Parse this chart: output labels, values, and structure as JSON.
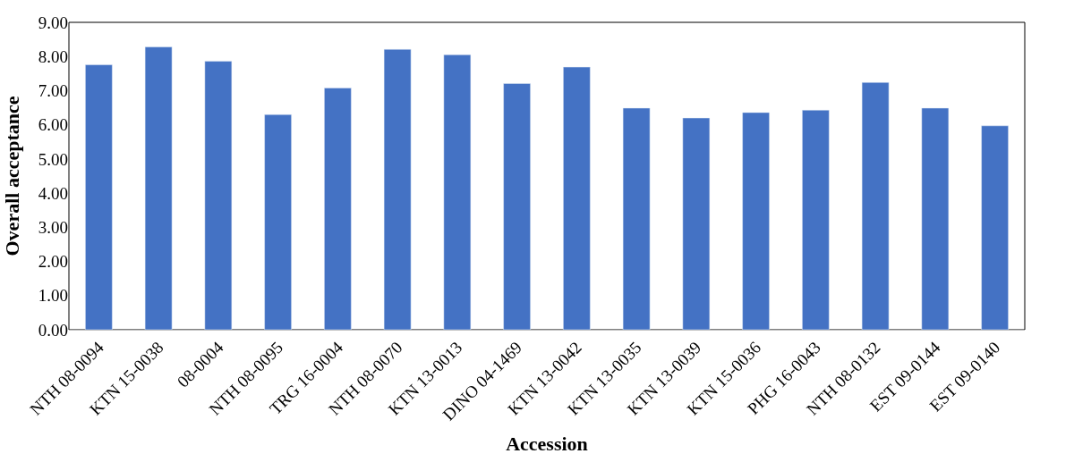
{
  "chart_data": {
    "type": "bar",
    "xlabel": "Accession",
    "ylabel": "Overall acceptance",
    "categories": [
      "NTH 08-0094",
      "KTN 15-0038",
      "08-0004",
      "NTH 08-0095",
      "TRG 16-0004",
      "NTH 08-0070",
      "KTN 13-0013",
      "DINO 04-1469",
      "KTN 13-0042",
      "KTN 13-0035",
      "KTN 13-0039",
      "KTN 15-0036",
      "PHG 16-0043",
      "NTH 08-0132",
      "EST 09-0144",
      "EST 09-0140"
    ],
    "values": [
      7.76,
      8.28,
      7.86,
      6.3,
      7.08,
      8.21,
      8.05,
      7.21,
      7.69,
      6.49,
      6.2,
      6.36,
      6.43,
      7.24,
      6.49,
      5.97
    ],
    "color": "#4472c4",
    "ylim": [
      0,
      9
    ],
    "yticks": [
      {
        "value": 0,
        "label": "0.00"
      },
      {
        "value": 1,
        "label": "1.00"
      },
      {
        "value": 2,
        "label": "2.00"
      },
      {
        "value": 3,
        "label": "3.00"
      },
      {
        "value": 4,
        "label": "4.00"
      },
      {
        "value": 5,
        "label": "5.00"
      },
      {
        "value": 6,
        "label": "6.00"
      },
      {
        "value": 7,
        "label": "7.00"
      },
      {
        "value": 8,
        "label": "8.00"
      },
      {
        "value": 9,
        "label": "9.00"
      }
    ],
    "grid": false
  }
}
